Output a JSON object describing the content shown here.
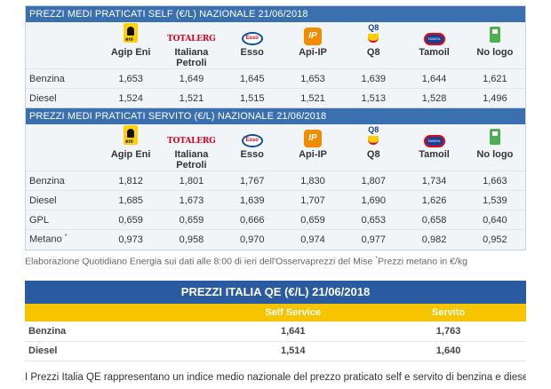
{
  "brands": [
    "Agip Eni",
    "Italiana Petroli",
    "Esso",
    "Api-IP",
    "Q8",
    "Tamoil",
    "No logo"
  ],
  "logos": {
    "agip": "eni-logo",
    "agip_text": "eni",
    "ip": "totalerg-logo",
    "ip_text": "TOTALERG",
    "esso": "esso-logo",
    "esso_text": "Esso",
    "api": "ip-logo",
    "api_text": "IP",
    "q8": "q8-logo",
    "q8_text": "Q8",
    "tamoil": "tamoil-logo",
    "tamoil_text": "TAMOIL",
    "nologo": "fuel-pump-icon"
  },
  "self": {
    "title": "PREZZI MEDI PRATICATI SELF (€/L) NAZIONALE 21/06/2018",
    "rows": [
      {
        "label": "Benzina",
        "values": [
          "1,653",
          "1,649",
          "1,645",
          "1,653",
          "1,639",
          "1,644",
          "1,621"
        ]
      },
      {
        "label": "Diesel",
        "values": [
          "1,524",
          "1,521",
          "1,515",
          "1,521",
          "1,513",
          "1,528",
          "1,496"
        ]
      }
    ]
  },
  "servito": {
    "title": "PREZZI MEDI PRATICATI SERVITO (€/L) NAZIONALE 21/06/2018",
    "rows": [
      {
        "label": "Benzina",
        "values": [
          "1,812",
          "1,801",
          "1,767",
          "1,830",
          "1,807",
          "1,734",
          "1,663"
        ]
      },
      {
        "label": "Diesel",
        "values": [
          "1,685",
          "1,673",
          "1,639",
          "1,707",
          "1,690",
          "1,626",
          "1,539"
        ]
      },
      {
        "label": "GPL",
        "values": [
          "0,659",
          "0,659",
          "0,666",
          "0,659",
          "0,653",
          "0,658",
          "0,640"
        ]
      },
      {
        "label": "Metano",
        "marker": "*",
        "values": [
          "0,973",
          "0,958",
          "0,970",
          "0,974",
          "0,977",
          "0,982",
          "0,952"
        ]
      }
    ]
  },
  "footnote": {
    "text": "Elaborazione Quotidiano Energia sui dati alle 8:00 di ieri dell'Osservaprezzi del Mise ",
    "marker": "*",
    "text2": "Prezzi metano in €/kg"
  },
  "qe": {
    "title": "PREZZI ITALIA QE (€/L) 21/06/2018",
    "col_self": "Self Service",
    "col_servito": "Servito",
    "rows": [
      {
        "label": "Benzina",
        "self": "1,641",
        "servito": "1,763"
      },
      {
        "label": "Diesel",
        "self": "1,514",
        "servito": "1,640"
      }
    ],
    "note": "I Prezzi Italia QE rappresentano un indice medio nazionale del prezzo praticato self e servito di benzina e diesel."
  },
  "colors": {
    "header_blue": "#3a70b0",
    "qe_blue": "#2a5aa0",
    "qe_yellow": "#f7c500"
  }
}
